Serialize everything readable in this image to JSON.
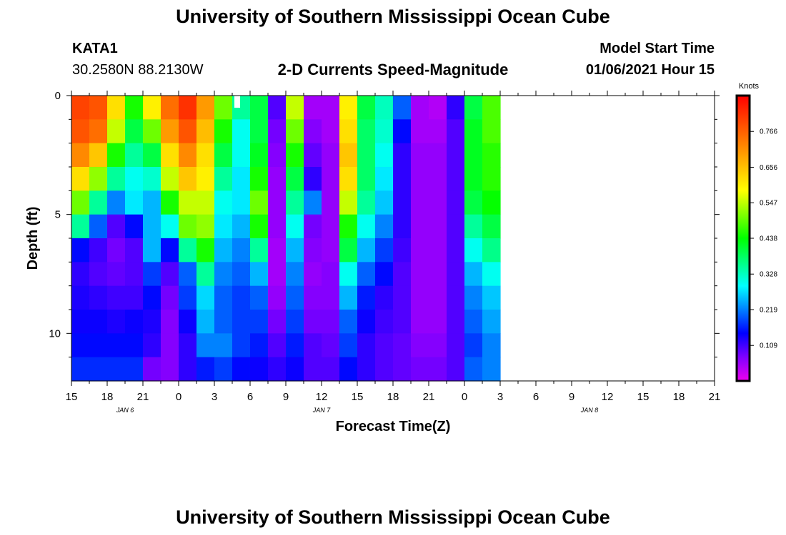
{
  "page": {
    "title_top": "University of Southern Mississippi Ocean Cube",
    "title_bottom": "University of Southern Mississippi Ocean Cube",
    "station_id": "KATA1",
    "station_coords": "30.2580N 88.2130W",
    "subtitle": "2-D Currents Speed-Magnitude",
    "model_label": "Model Start Time",
    "model_time": "01/06/2021 Hour 15"
  },
  "chart_data": {
    "type": "heatmap",
    "title": "2-D Currents Speed-Magnitude",
    "xlabel": "Forecast Time(Z)",
    "ylabel": "Depth (ft)",
    "x_tick_labels": [
      "15",
      "18",
      "21",
      "0",
      "3",
      "6",
      "9",
      "12",
      "15",
      "18",
      "21",
      "0",
      "3",
      "6",
      "9",
      "12",
      "15",
      "18",
      "21"
    ],
    "x_hours": [
      0,
      3,
      6,
      9,
      12,
      15,
      18,
      21,
      24,
      27,
      30,
      33,
      36,
      39,
      42,
      45,
      48,
      51,
      54
    ],
    "date_labels": [
      {
        "text": "JAN 6",
        "hour": 4.5
      },
      {
        "text": "JAN 7",
        "hour": 21
      },
      {
        "text": "JAN 8",
        "hour": 43.5
      }
    ],
    "xlim": [
      0,
      54
    ],
    "y_tick_labels": [
      "0",
      "5",
      "10"
    ],
    "y_ticks": [
      0,
      5,
      10
    ],
    "ylim": [
      0,
      12
    ],
    "colorbar": {
      "label": "Knots",
      "ticks": [
        "0.766",
        "0.656",
        "0.547",
        "0.438",
        "0.328",
        "0.219",
        "0.109"
      ],
      "tick_values": [
        0.766,
        0.656,
        0.547,
        0.438,
        0.328,
        0.219,
        0.109
      ],
      "range": [
        0,
        0.876
      ],
      "colors": [
        "#ee00ee",
        "#8000ff",
        "#0000ff",
        "#0080ff",
        "#00ffff",
        "#00ff80",
        "#00ff00",
        "#80ff00",
        "#ffff00",
        "#ffc000",
        "#ff8000",
        "#ff4000",
        "#ff0000"
      ]
    },
    "depth_levels_ft": [
      0.5,
      1.5,
      2.5,
      3.5,
      4.5,
      5.5,
      6.5,
      7.5,
      8.5,
      9.5,
      10.5,
      11.5
    ],
    "time_columns": [
      {
        "hours": 1.5,
        "profile": [
          0.8,
          0.78,
          0.72,
          0.62,
          0.5,
          0.35,
          0.15,
          0.12,
          0.13,
          0.14,
          0.15,
          0.17
        ]
      },
      {
        "hours": 3.0,
        "profile": [
          0.78,
          0.75,
          0.65,
          0.52,
          0.35,
          0.2,
          0.11,
          0.1,
          0.12,
          0.14,
          0.15,
          0.17
        ]
      },
      {
        "hours": 4.5,
        "profile": [
          0.62,
          0.55,
          0.45,
          0.35,
          0.22,
          0.1,
          0.08,
          0.09,
          0.11,
          0.13,
          0.15,
          0.17
        ]
      },
      {
        "hours": 6.0,
        "profile": [
          0.45,
          0.4,
          0.35,
          0.3,
          0.28,
          0.15,
          0.1,
          0.1,
          0.11,
          0.14,
          0.15,
          0.17
        ]
      },
      {
        "hours": 7.5,
        "profile": [
          0.6,
          0.5,
          0.4,
          0.32,
          0.25,
          0.25,
          0.25,
          0.18,
          0.15,
          0.13,
          0.12,
          0.08
        ]
      },
      {
        "hours": 9.0,
        "profile": [
          0.75,
          0.7,
          0.62,
          0.55,
          0.45,
          0.3,
          0.15,
          0.1,
          0.08,
          0.07,
          0.07,
          0.07
        ]
      },
      {
        "hours": 10.5,
        "profile": [
          0.82,
          0.78,
          0.72,
          0.65,
          0.55,
          0.5,
          0.35,
          0.2,
          0.18,
          0.14,
          0.12,
          0.12
        ]
      },
      {
        "hours": 12.0,
        "profile": [
          0.7,
          0.66,
          0.62,
          0.6,
          0.55,
          0.52,
          0.45,
          0.35,
          0.27,
          0.25,
          0.22,
          0.16
        ]
      },
      {
        "hours": 13.5,
        "profile": [
          0.5,
          0.45,
          0.4,
          0.35,
          0.3,
          0.28,
          0.25,
          0.22,
          0.2,
          0.2,
          0.22,
          0.18
        ]
      },
      {
        "hours": 15.0,
        "profile": [
          0.35,
          0.3,
          0.3,
          0.28,
          0.28,
          0.25,
          0.22,
          0.2,
          0.18,
          0.18,
          0.18,
          0.15
        ]
      },
      {
        "hours": 16.5,
        "profile": [
          0.4,
          0.4,
          0.42,
          0.45,
          0.5,
          0.45,
          0.35,
          0.25,
          0.2,
          0.18,
          0.16,
          0.14
        ]
      },
      {
        "hours": 18.0,
        "profile": [
          0.1,
          0.08,
          0.07,
          0.06,
          0.06,
          0.06,
          0.05,
          0.05,
          0.06,
          0.08,
          0.1,
          0.12
        ]
      },
      {
        "hours": 19.5,
        "profile": [
          0.55,
          0.5,
          0.45,
          0.4,
          0.35,
          0.3,
          0.25,
          0.22,
          0.2,
          0.18,
          0.16,
          0.14
        ]
      },
      {
        "hours": 21.0,
        "profile": [
          0.05,
          0.07,
          0.09,
          0.12,
          0.22,
          0.08,
          0.07,
          0.06,
          0.07,
          0.08,
          0.1,
          0.1
        ]
      },
      {
        "hours": 22.5,
        "profile": [
          0.05,
          0.05,
          0.06,
          0.06,
          0.06,
          0.06,
          0.06,
          0.07,
          0.07,
          0.08,
          0.09,
          0.1
        ]
      },
      {
        "hours": 24.0,
        "profile": [
          0.6,
          0.62,
          0.65,
          0.62,
          0.55,
          0.45,
          0.4,
          0.3,
          0.25,
          0.2,
          0.18,
          0.15
        ]
      },
      {
        "hours": 25.5,
        "profile": [
          0.4,
          0.38,
          0.38,
          0.38,
          0.35,
          0.3,
          0.25,
          0.2,
          0.16,
          0.14,
          0.12,
          0.12
        ]
      },
      {
        "hours": 27.0,
        "profile": [
          0.33,
          0.32,
          0.3,
          0.28,
          0.26,
          0.22,
          0.18,
          0.15,
          0.12,
          0.11,
          0.1,
          0.1
        ]
      },
      {
        "hours": 28.5,
        "profile": [
          0.2,
          0.15,
          0.12,
          0.12,
          0.12,
          0.12,
          0.11,
          0.1,
          0.1,
          0.1,
          0.09,
          0.09
        ]
      },
      {
        "hours": 30.0,
        "profile": [
          0.05,
          0.05,
          0.06,
          0.06,
          0.06,
          0.06,
          0.06,
          0.06,
          0.06,
          0.06,
          0.07,
          0.08
        ]
      },
      {
        "hours": 31.5,
        "profile": [
          0.04,
          0.05,
          0.06,
          0.06,
          0.06,
          0.06,
          0.06,
          0.06,
          0.06,
          0.06,
          0.07,
          0.08
        ]
      },
      {
        "hours": 33.0,
        "profile": [
          0.12,
          0.1,
          0.1,
          0.1,
          0.1,
          0.1,
          0.1,
          0.1,
          0.1,
          0.1,
          0.1,
          0.1
        ]
      },
      {
        "hours": 34.5,
        "profile": [
          0.4,
          0.42,
          0.42,
          0.42,
          0.4,
          0.35,
          0.3,
          0.25,
          0.22,
          0.2,
          0.18,
          0.2
        ]
      },
      {
        "hours": 36.0,
        "profile": [
          0.48,
          0.48,
          0.46,
          0.46,
          0.44,
          0.4,
          0.36,
          0.3,
          0.26,
          0.24,
          0.22,
          0.22
        ]
      }
    ]
  }
}
